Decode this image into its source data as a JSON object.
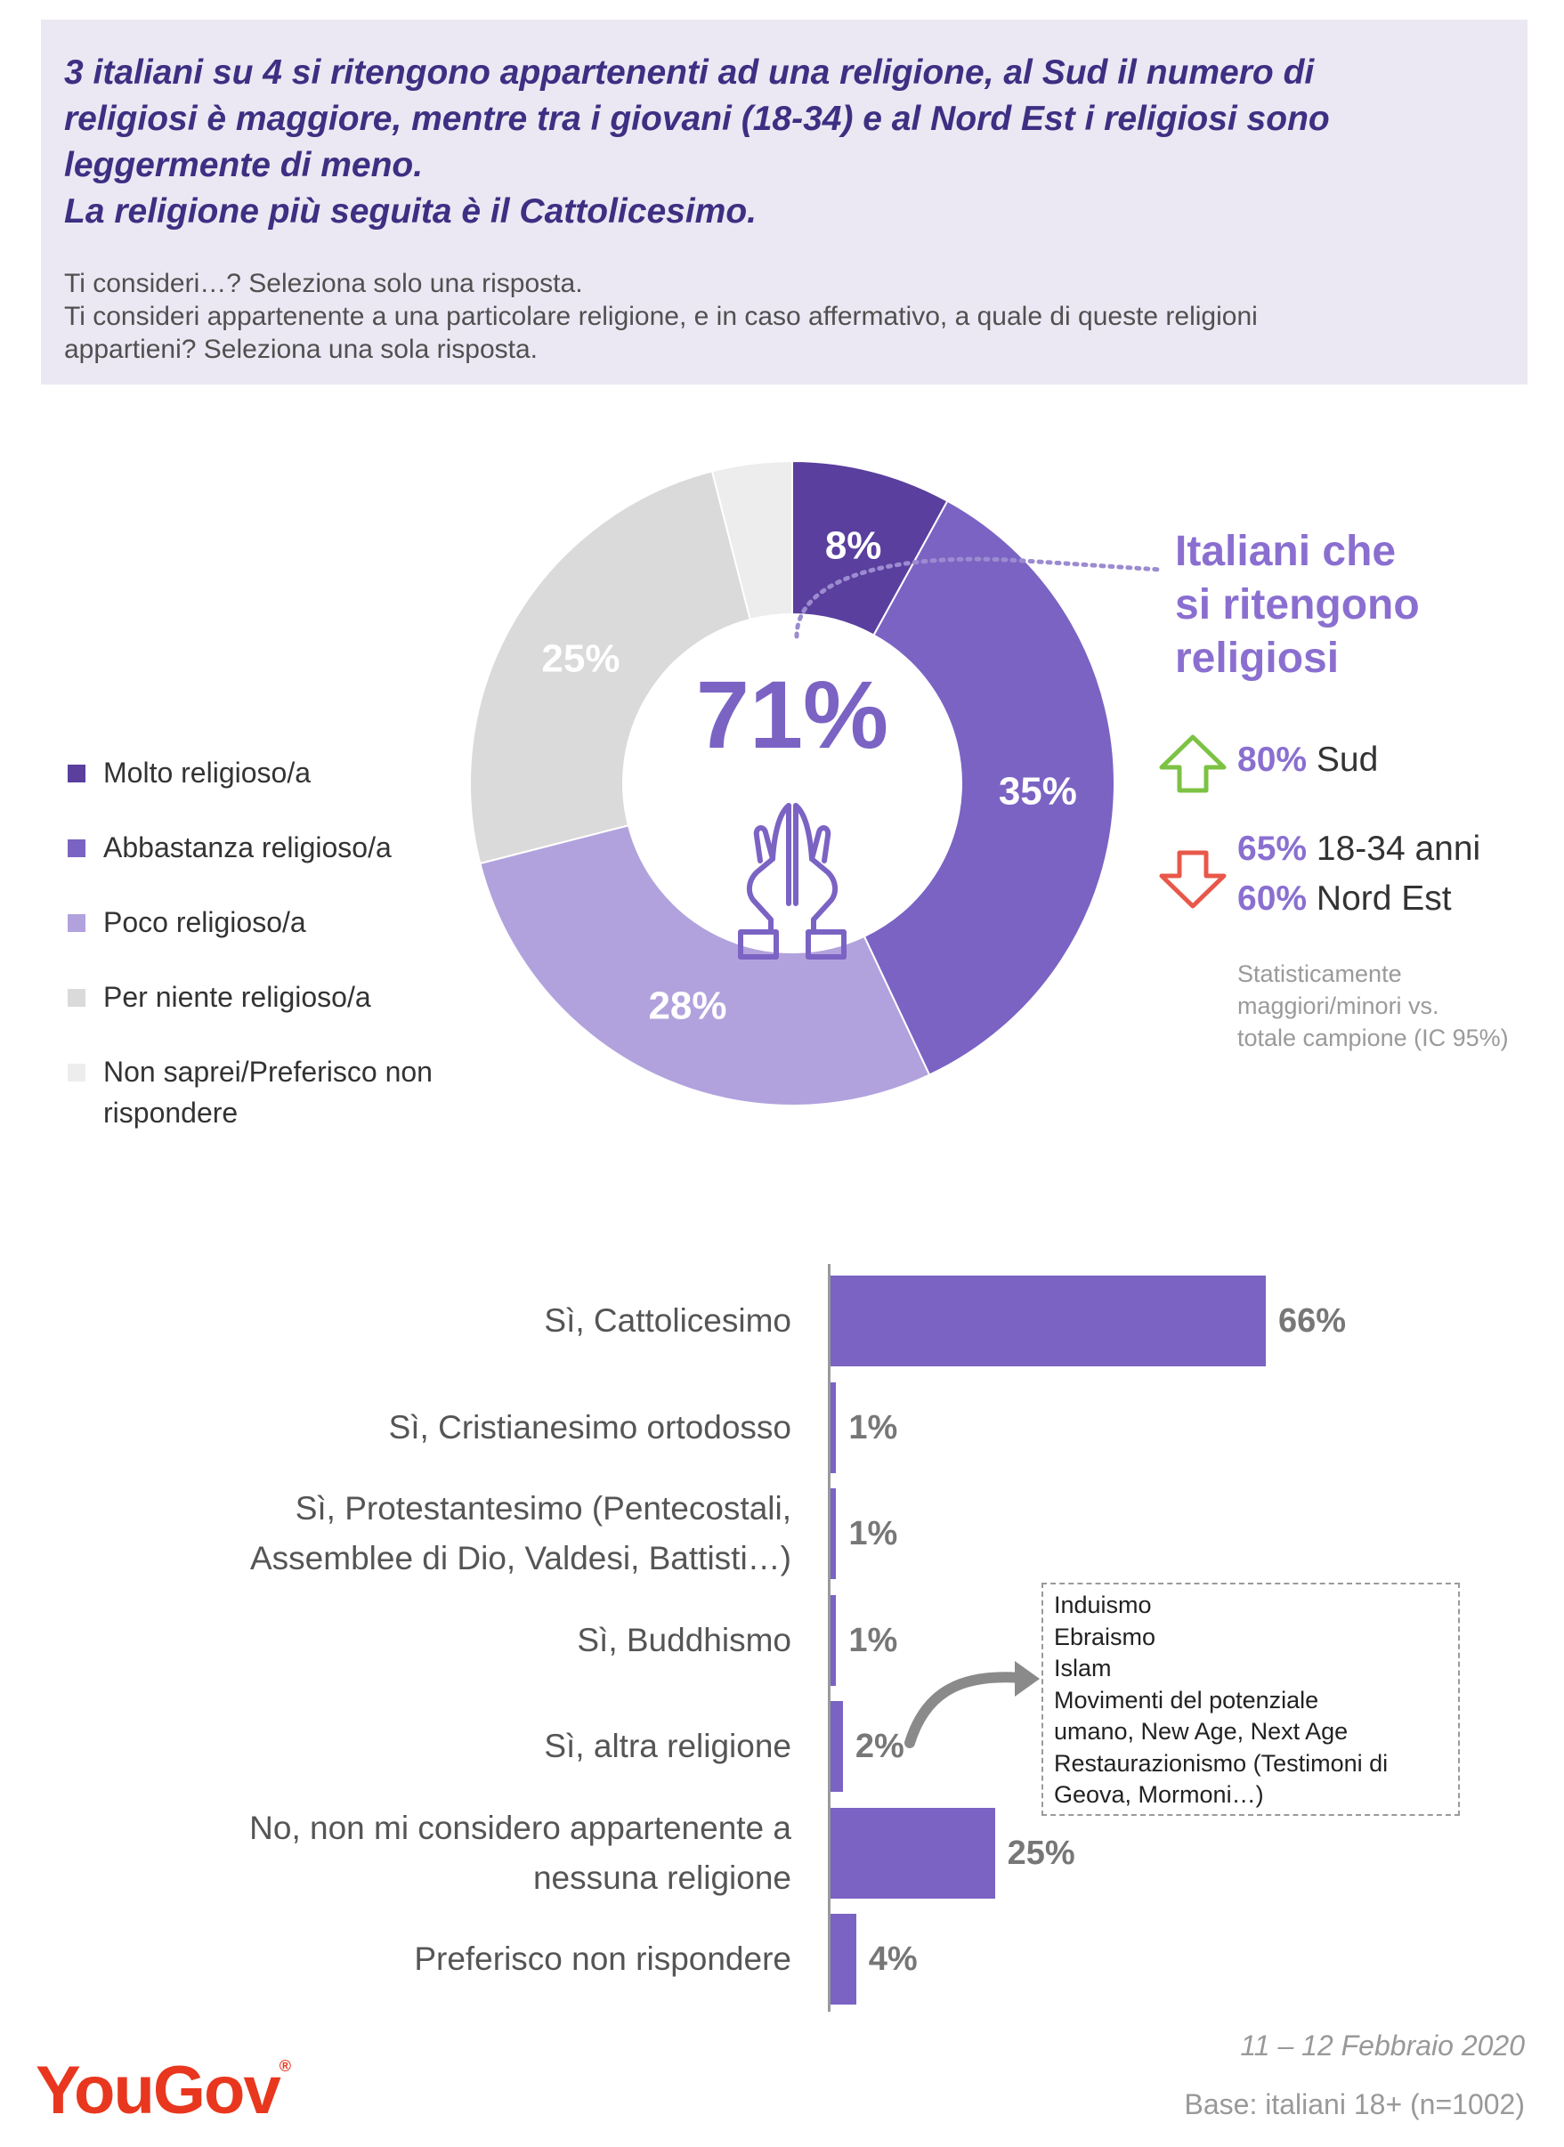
{
  "header": {
    "headline": [
      "3 italiani su 4 si ritengono appartenenti ad una religione, al Sud il numero di",
      "religiosi è maggiore, mentre tra i giovani (18-34) e al Nord Est i religiosi sono",
      "leggermente di meno.",
      "La religione più seguita è il Cattolicesimo."
    ],
    "questions": [
      "Ti consideri…? Seleziona solo una risposta.",
      "Ti consideri appartenente a una particolare religione, e in caso affermativo, a quale di queste religioni",
      "appartieni? Seleziona una sola risposta."
    ]
  },
  "colors": {
    "header_bg": "#ebe8f3",
    "headline": "#3d2f82",
    "accent": "#8a6fd0",
    "bar": "#7b63c4",
    "up_arrow": "#7cc243",
    "down_arrow": "#e8584a",
    "logo": "#e8371e"
  },
  "chart_data": [
    {
      "type": "pie",
      "categories": [
        "Molto religioso/a",
        "Abbastanza religioso/a",
        "Poco religioso/a",
        "Per niente religioso/a",
        "Non saprei/Preferisco non rispondere"
      ],
      "values": [
        8,
        35,
        28,
        25,
        4
      ],
      "labels": [
        "8%",
        "35%",
        "28%",
        "25%",
        ""
      ],
      "colors": [
        "#5a3f9e",
        "#7b63c4",
        "#b1a2dd",
        "#dadada",
        "#ededed"
      ],
      "center_value": "71%",
      "center_icon": "praying-hands-icon",
      "legend": "left"
    },
    {
      "type": "bar",
      "orientation": "horizontal",
      "categories": [
        [
          "Sì, Cattolicesimo"
        ],
        [
          "Sì, Cristianesimo ortodosso"
        ],
        [
          "Sì, Protestantesimo (Pentecostali,",
          "Assemblee di Dio, Valdesi, Battisti…)"
        ],
        [
          "Sì, Buddhismo"
        ],
        [
          "Sì, altra religione"
        ],
        [
          "No, non mi considero appartenente a",
          "nessuna religione"
        ],
        [
          "Preferisco non rispondere"
        ]
      ],
      "values": [
        66,
        1,
        1,
        1,
        2,
        25,
        4
      ],
      "value_labels": [
        "66%",
        "1%",
        "1%",
        "1%",
        "2%",
        "25%",
        "4%"
      ],
      "color": "#7b63c4",
      "annotation_lines": [
        "Induismo",
        "Ebraismo",
        "Islam",
        "Movimenti del potenziale",
        "umano, New Age, Next Age",
        "Restaurazionismo (Testimoni di",
        "Geova, Mormoni…)"
      ]
    }
  ],
  "callout": {
    "title": [
      "Italiani che",
      "si ritengono",
      "religiosi"
    ],
    "up": [
      {
        "value": "80%",
        "label": "Sud"
      }
    ],
    "down": [
      {
        "value": "65%",
        "label": "18-34 anni"
      },
      {
        "value": "60%",
        "label": "Nord Est"
      }
    ],
    "note": [
      "Statisticamente",
      "maggiori/minori vs.",
      "totale campione (IC 95%)"
    ]
  },
  "footer": {
    "date": "11 – 12 Febbraio 2020",
    "base": "Base: italiani 18+ (n=1002)",
    "logo": "YouGov",
    "logo_mark": "®"
  }
}
